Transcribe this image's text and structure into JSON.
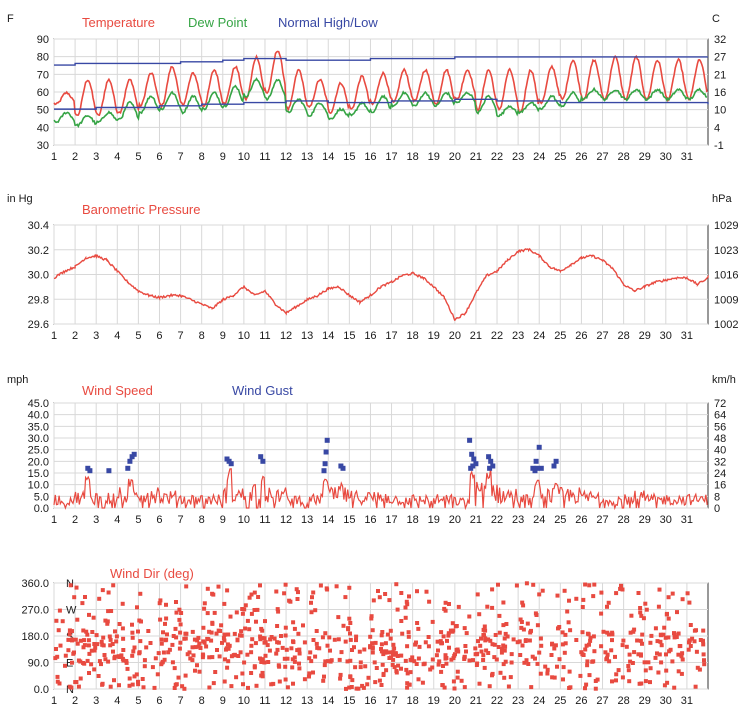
{
  "colors": {
    "red": "#e84a40",
    "green": "#36a445",
    "blue": "#3848a4",
    "grid": "#d8d8d8",
    "frame": "#333333"
  },
  "days": [
    "1",
    "2",
    "3",
    "4",
    "5",
    "6",
    "7",
    "8",
    "9",
    "10",
    "11",
    "12",
    "13",
    "14",
    "15",
    "16",
    "17",
    "18",
    "19",
    "20",
    "21",
    "22",
    "23",
    "24",
    "25",
    "26",
    "27",
    "28",
    "29",
    "30",
    "31"
  ],
  "chart_data": [
    {
      "type": "line",
      "title": "",
      "legend": [
        {
          "name": "Temperature",
          "color": "#e84a40"
        },
        {
          "name": "Dew Point",
          "color": "#36a445"
        },
        {
          "name": "Normal High/Low",
          "color": "#3848a4"
        }
      ],
      "left_unit": "F",
      "right_unit": "C",
      "y_ticks_left": [
        "90",
        "80",
        "70",
        "60",
        "50",
        "40",
        "30"
      ],
      "y_ticks_right": [
        "32",
        "27",
        "21",
        "16",
        "10",
        "4",
        "-1"
      ],
      "ylim": [
        30,
        95
      ],
      "xlim": [
        1,
        32
      ],
      "series": [
        {
          "name": "Temperature",
          "color": "#e84a40",
          "kind": "diurnal",
          "min": [
            55,
            48,
            48,
            50,
            54,
            54,
            55,
            54,
            56,
            58,
            62,
            52,
            53,
            50,
            52,
            55,
            56,
            57,
            55,
            58,
            52,
            52,
            50,
            56,
            58,
            58,
            58,
            58,
            58,
            58,
            58
          ],
          "max": [
            62,
            70,
            70,
            70,
            74,
            78,
            74,
            76,
            78,
            84,
            88,
            76,
            70,
            68,
            72,
            74,
            76,
            76,
            76,
            76,
            76,
            76,
            76,
            78,
            82,
            82,
            84,
            84,
            82,
            82,
            82
          ]
        },
        {
          "name": "Dew Point",
          "color": "#36a445",
          "kind": "diurnal",
          "min": [
            44,
            42,
            44,
            46,
            50,
            52,
            50,
            52,
            54,
            60,
            58,
            50,
            48,
            46,
            48,
            50,
            54,
            54,
            54,
            56,
            50,
            48,
            50,
            52,
            54,
            58,
            58,
            58,
            58,
            58,
            58
          ],
          "max": [
            50,
            48,
            50,
            56,
            60,
            62,
            60,
            62,
            66,
            70,
            70,
            58,
            56,
            52,
            56,
            60,
            62,
            62,
            62,
            62,
            60,
            54,
            56,
            60,
            62,
            64,
            64,
            64,
            64,
            64,
            64
          ]
        },
        {
          "name": "Normal High",
          "color": "#3848a4",
          "kind": "step",
          "x": [
            1,
            2,
            4,
            7,
            9,
            10,
            12,
            16,
            20,
            23,
            27,
            32
          ],
          "y": [
            79,
            80,
            80,
            81,
            82,
            83,
            82,
            83,
            84,
            84,
            84,
            84
          ]
        },
        {
          "name": "Normal Low",
          "color": "#3848a4",
          "kind": "step",
          "x": [
            1,
            3,
            6,
            8,
            10,
            12,
            14,
            17,
            20,
            22,
            25,
            28,
            32
          ],
          "y": [
            52,
            53,
            54,
            55,
            56,
            57,
            56,
            57,
            58,
            57,
            56,
            56,
            55
          ]
        }
      ]
    },
    {
      "type": "line",
      "title": "Barometric Pressure",
      "left_unit": "in Hg",
      "right_unit": "hPa",
      "y_ticks_left": [
        "30.4",
        "30.2",
        "30.0",
        "29.8",
        "29.6"
      ],
      "y_ticks_right": [
        "1029",
        "1023",
        "1016",
        "1009",
        "1002"
      ],
      "ylim": [
        29.6,
        30.5
      ],
      "xlim": [
        1,
        32
      ],
      "series": [
        {
          "name": "Barometric Pressure",
          "color": "#e84a40",
          "x": [
            1,
            1.5,
            2,
            2.5,
            3,
            3.5,
            4,
            4.5,
            5,
            5.5,
            6,
            6.5,
            7,
            7.5,
            8,
            8.5,
            9,
            9.5,
            10,
            10.5,
            11,
            11.5,
            12,
            12.5,
            13,
            13.5,
            14,
            14.5,
            15,
            15.5,
            16,
            16.5,
            17,
            17.5,
            18,
            18.5,
            19,
            19.5,
            20,
            20.5,
            21,
            21.5,
            22,
            22.5,
            23,
            23.5,
            24,
            24.5,
            25,
            25.5,
            26,
            26.5,
            27,
            27.5,
            28,
            28.5,
            29,
            29.5,
            30,
            30.5,
            31,
            31.5,
            32
          ],
          "y": [
            30.02,
            30.08,
            30.12,
            30.2,
            30.22,
            30.18,
            30.08,
            29.98,
            29.9,
            29.86,
            29.84,
            29.86,
            29.86,
            29.82,
            29.78,
            29.74,
            29.82,
            29.86,
            29.94,
            29.86,
            29.9,
            29.78,
            29.7,
            29.76,
            29.82,
            29.86,
            29.92,
            29.94,
            29.86,
            29.8,
            29.86,
            29.94,
            29.98,
            30.04,
            30.06,
            30.02,
            29.94,
            29.84,
            29.64,
            29.7,
            29.88,
            30.04,
            30.08,
            30.18,
            30.26,
            30.28,
            30.22,
            30.12,
            30.08,
            30.14,
            30.2,
            30.22,
            30.18,
            30.1,
            29.96,
            29.9,
            29.94,
            29.98,
            30.0,
            30.02,
            30.02,
            29.96,
            30.02
          ]
        }
      ]
    },
    {
      "type": "scatter",
      "legend": [
        {
          "name": "Wind Speed",
          "color": "#e84a40"
        },
        {
          "name": "Wind Gust",
          "color": "#3848a4"
        }
      ],
      "left_unit": "mph",
      "right_unit": "km/h",
      "y_ticks_left": [
        "45.0",
        "40.0",
        "35.0",
        "30.0",
        "25.0",
        "20.0",
        "15.0",
        "10.0",
        "5.0",
        "0.0"
      ],
      "y_ticks_right": [
        "72",
        "64",
        "56",
        "48",
        "40",
        "32",
        "24",
        "16",
        "8",
        "0"
      ],
      "ylim": [
        0,
        45
      ],
      "xlim": [
        1,
        32
      ],
      "series": [
        {
          "name": "Wind Speed",
          "color": "#e84a40",
          "kind": "noise",
          "base": [
            4,
            5,
            5,
            6,
            7,
            5,
            4,
            4,
            6,
            8,
            6,
            4,
            4,
            6,
            5,
            5,
            4,
            4,
            4,
            3,
            8,
            6,
            4,
            6,
            6,
            5,
            4,
            5,
            4,
            4,
            4
          ],
          "spike_x": [
            2.6,
            4.6,
            9.3,
            10.9,
            13.9,
            14.6,
            20.8,
            21.6,
            23.9,
            24.8
          ],
          "spike_y": [
            14,
            13,
            17,
            15,
            13,
            11,
            16,
            18,
            12,
            11
          ]
        },
        {
          "name": "Wind Gust",
          "color": "#3848a4",
          "x": [
            2.6,
            2.7,
            3.6,
            4.5,
            4.6,
            4.7,
            4.8,
            9.2,
            9.3,
            9.4,
            10.8,
            10.9,
            13.8,
            13.85,
            13.9,
            13.95,
            14.6,
            14.7,
            20.7,
            20.8,
            20.9,
            21.0,
            20.85,
            20.75,
            21.6,
            21.7,
            21.8,
            21.65,
            23.7,
            23.8,
            23.9,
            24.0,
            24.1,
            23.85,
            24.7,
            24.8
          ],
          "y": [
            17,
            16,
            16,
            17,
            20,
            22,
            23,
            21,
            20,
            19,
            22,
            20,
            16,
            19,
            24,
            29,
            18,
            17,
            29,
            23,
            21,
            19,
            18,
            17,
            22,
            20,
            18,
            17,
            17,
            16,
            17,
            26,
            17,
            20,
            18,
            20
          ]
        }
      ]
    },
    {
      "type": "scatter",
      "title": "Wind Dir (deg)",
      "y_ticks_left": [
        "360.0",
        "270.0",
        "180.0",
        "90.0",
        "0.0"
      ],
      "side_letters": [
        "N",
        "W",
        "S",
        "E",
        "N"
      ],
      "ylim": [
        0,
        360
      ],
      "xlim": [
        1,
        32
      ],
      "series": [
        {
          "name": "Wind Dir (deg)",
          "color": "#e84a40",
          "kind": "dense_random"
        }
      ]
    }
  ]
}
